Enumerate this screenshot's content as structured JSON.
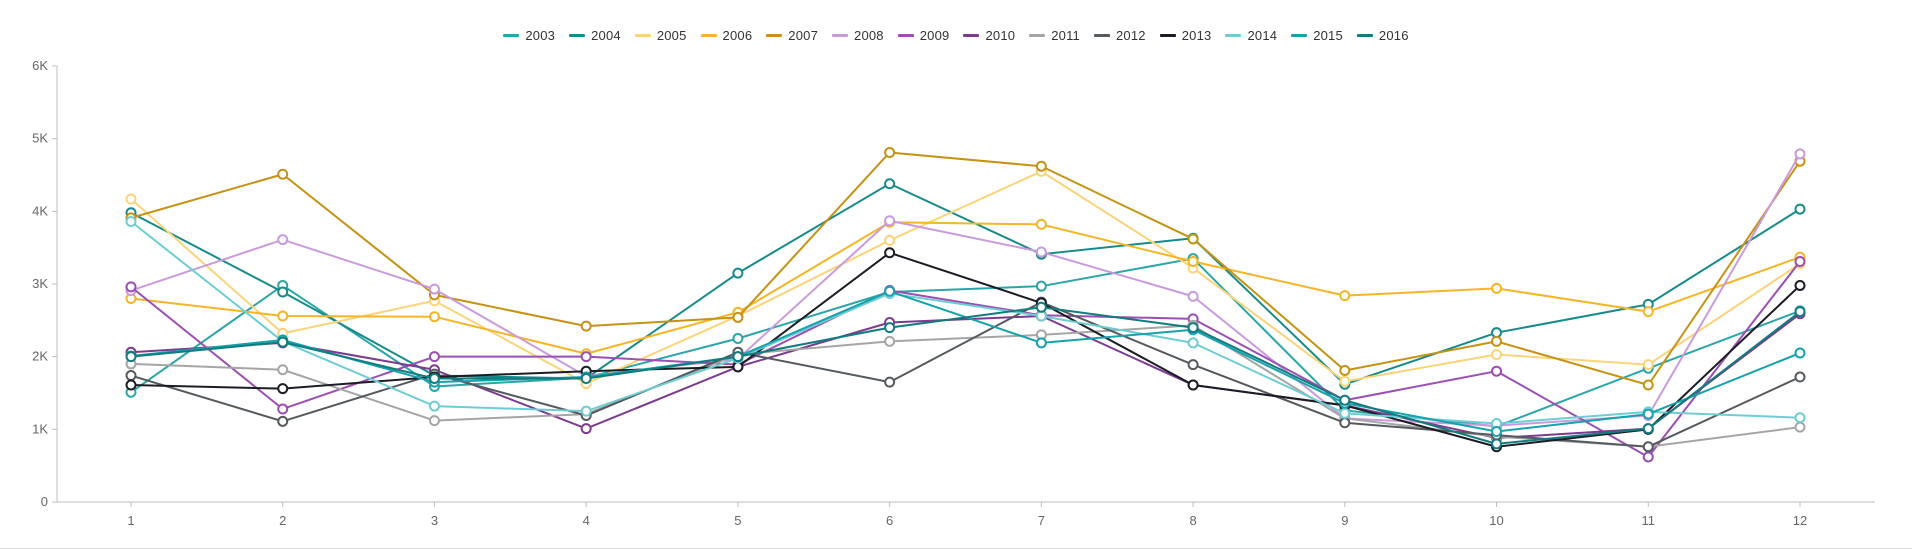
{
  "chart_data": {
    "type": "line",
    "title": "",
    "xlabel": "",
    "ylabel": "",
    "x": [
      "1",
      "2",
      "3",
      "4",
      "5",
      "6",
      "7",
      "8",
      "9",
      "10",
      "11",
      "12"
    ],
    "ylim": [
      0,
      6000
    ],
    "yticks": [
      {
        "value": 0,
        "label": "0"
      },
      {
        "value": 1000,
        "label": "1K"
      },
      {
        "value": 2000,
        "label": "2K"
      },
      {
        "value": 3000,
        "label": "3K"
      },
      {
        "value": 4000,
        "label": "4K"
      },
      {
        "value": 5000,
        "label": "5K"
      },
      {
        "value": 6000,
        "label": "6K"
      }
    ],
    "grid": false,
    "legend_position": "top-center",
    "series": [
      {
        "name": "2003",
        "color": "#2aa5a8",
        "values": [
          1510,
          2980,
          1590,
          1710,
          2250,
          2890,
          2970,
          3350,
          1260,
          1040,
          1840,
          2630
        ]
      },
      {
        "name": "2004",
        "color": "#168b8a",
        "values": [
          3980,
          2890,
          1740,
          1700,
          3150,
          4380,
          3410,
          3630,
          1620,
          2330,
          2720,
          4030
        ]
      },
      {
        "name": "2005",
        "color": "#fbd479",
        "values": [
          4170,
          2320,
          2770,
          1630,
          2560,
          3600,
          4550,
          3220,
          1660,
          2030,
          1890,
          3280
        ]
      },
      {
        "name": "2006",
        "color": "#f5b526",
        "values": [
          2800,
          2560,
          2550,
          2040,
          2610,
          3850,
          3820,
          3310,
          2840,
          2940,
          2620,
          3370
        ]
      },
      {
        "name": "2007",
        "color": "#c69214",
        "values": [
          3910,
          4510,
          2850,
          2420,
          2540,
          4810,
          4620,
          3620,
          1810,
          2210,
          1610,
          4690
        ]
      },
      {
        "name": "2008",
        "color": "#c99bdc",
        "values": [
          2910,
          3610,
          2930,
          1730,
          1970,
          3870,
          3440,
          2830,
          1150,
          1050,
          1190,
          4790
        ]
      },
      {
        "name": "2009",
        "color": "#9b4fb3",
        "values": [
          2960,
          1280,
          2000,
          2000,
          1890,
          2910,
          2570,
          2520,
          1400,
          1800,
          620,
          3310
        ]
      },
      {
        "name": "2010",
        "color": "#7d3b8f",
        "values": [
          2060,
          2190,
          1820,
          1010,
          1860,
          2470,
          2560,
          1610,
          1330,
          880,
          1010,
          2590
        ]
      },
      {
        "name": "2011",
        "color": "#a5a5a5",
        "values": [
          1900,
          1820,
          1120,
          1210,
          2030,
          2210,
          2300,
          2430,
          1150,
          900,
          760,
          1030
        ]
      },
      {
        "name": "2012",
        "color": "#555a5e",
        "values": [
          1740,
          1110,
          1760,
          1190,
          2060,
          1650,
          2750,
          1890,
          1090,
          920,
          760,
          1720
        ]
      },
      {
        "name": "2013",
        "color": "#1c1c24",
        "values": [
          1610,
          1560,
          1720,
          1800,
          1860,
          3430,
          2740,
          1610,
          1330,
          760,
          1000,
          2980
        ]
      },
      {
        "name": "2014",
        "color": "#6dcdd2",
        "values": [
          3860,
          2210,
          1320,
          1250,
          1980,
          2870,
          2560,
          2190,
          1220,
          1080,
          1240,
          1160
        ]
      },
      {
        "name": "2015",
        "color": "#15a2ad",
        "values": [
          2010,
          2230,
          1650,
          1720,
          2000,
          2900,
          2190,
          2370,
          1360,
          970,
          1210,
          2050
        ]
      },
      {
        "name": "2016",
        "color": "#117b7d",
        "values": [
          2000,
          2200,
          1700,
          1700,
          2000,
          2400,
          2680,
          2400,
          1400,
          800,
          1010,
          2620
        ]
      }
    ]
  }
}
